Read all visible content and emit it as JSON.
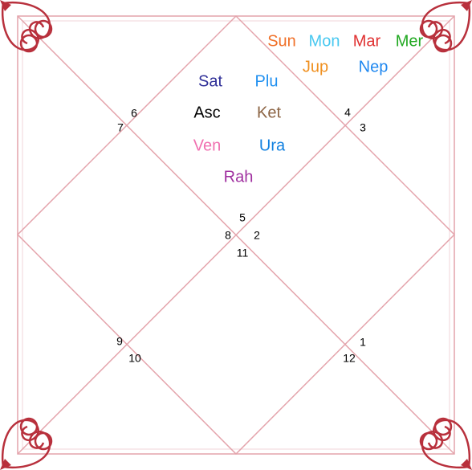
{
  "houses": [
    1,
    2,
    3,
    4,
    5,
    6,
    7,
    8,
    9,
    10,
    11,
    12
  ],
  "planets": [
    {
      "label": "Sun",
      "color": "#f07028"
    },
    {
      "label": "Mon",
      "color": "#48c8f0"
    },
    {
      "label": "Mar",
      "color": "#e03030"
    },
    {
      "label": "Mer",
      "color": "#20a820"
    },
    {
      "label": "Jup",
      "color": "#f09020"
    },
    {
      "label": "Nep",
      "color": "#2088f0"
    },
    {
      "label": "Sat",
      "color": "#303098"
    },
    {
      "label": "Plu",
      "color": "#2090f0"
    },
    {
      "label": "Asc",
      "color": "#000000"
    },
    {
      "label": "Ket",
      "color": "#8c6444"
    },
    {
      "label": "Ven",
      "color": "#f070b0"
    },
    {
      "label": "Ura",
      "color": "#1080e0"
    },
    {
      "label": "Rah",
      "color": "#a030a0"
    }
  ]
}
